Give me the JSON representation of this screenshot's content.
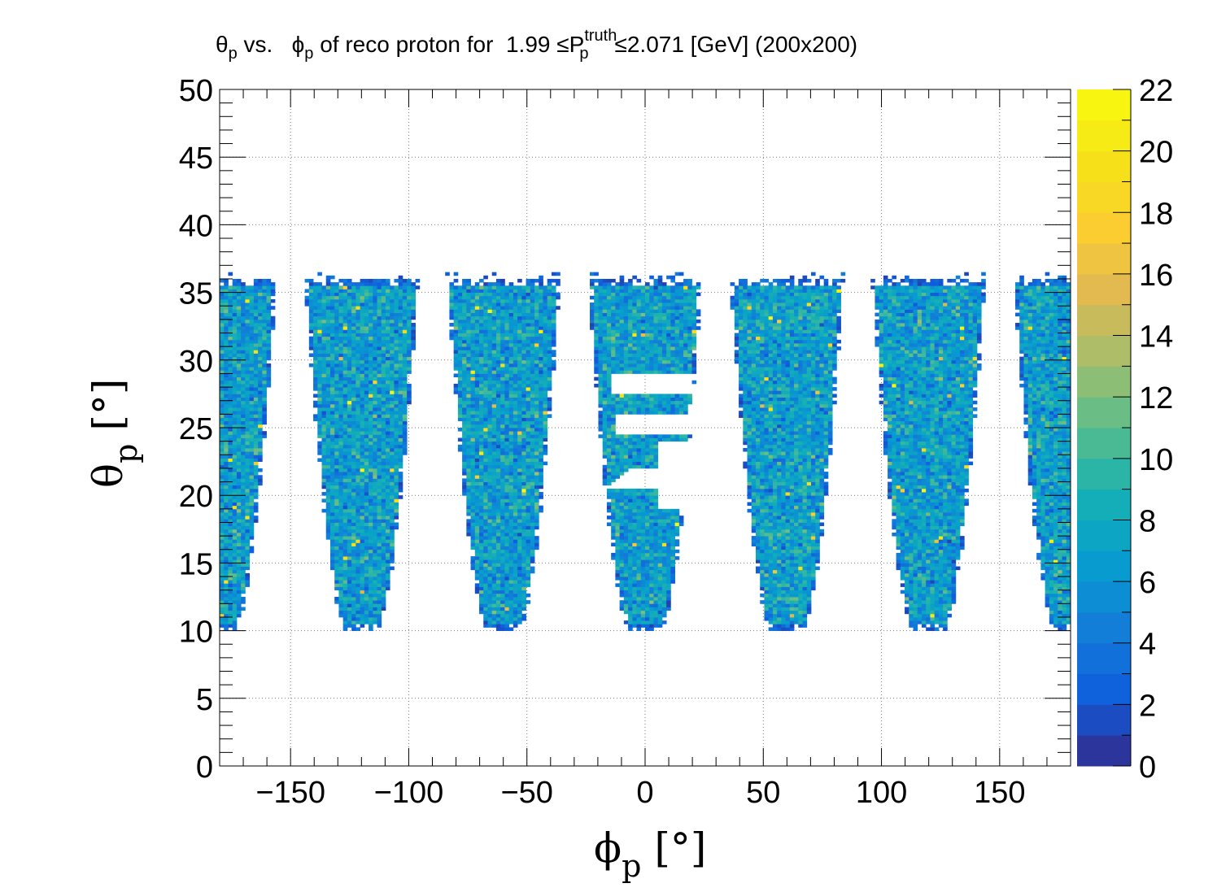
{
  "chart_data": {
    "type": "heatmap",
    "title": {
      "p1": "θ",
      "p1_sub": "p",
      "p2": " vs.   ",
      "p3": "ϕ",
      "p3_sub": "p",
      "p4": " of reco proton for  1.99 ≤P",
      "p4_sup": "truth",
      "p4_sub": "p",
      "p5": "≤2.071 [GeV] (200x200)"
    },
    "xlabel": {
      "main": "ϕ",
      "sub": "p",
      "unit": " [°]"
    },
    "ylabel": {
      "main": "θ",
      "sub": "p",
      "unit": " [°]"
    },
    "xlim": [
      -180,
      180
    ],
    "ylim": [
      0,
      50
    ],
    "zlim": [
      0,
      22
    ],
    "bins": [
      200,
      200
    ],
    "x_ticks": [
      -150,
      -100,
      -50,
      0,
      50,
      100,
      150
    ],
    "x_tick_labels": [
      "−150",
      "−100",
      "−50",
      "0",
      "50",
      "100",
      "150"
    ],
    "y_ticks": [
      0,
      5,
      10,
      15,
      20,
      25,
      30,
      35,
      40,
      45,
      50
    ],
    "y_tick_labels": [
      "0",
      "5",
      "10",
      "15",
      "20",
      "25",
      "30",
      "35",
      "40",
      "45",
      "50"
    ],
    "z_ticks": [
      0,
      2,
      4,
      6,
      8,
      10,
      12,
      14,
      16,
      18,
      20,
      22
    ],
    "z_tick_labels": [
      "0",
      "2",
      "4",
      "6",
      "8",
      "10",
      "12",
      "14",
      "16",
      "18",
      "20",
      "22"
    ],
    "grid": true,
    "colormap": "parula",
    "sectors": [
      {
        "phi_center": -180,
        "phi_half_width_top": 24,
        "phi_half_width_bottom": 6,
        "theta_min": 10,
        "theta_max": 36,
        "wrap": true
      },
      {
        "phi_center": -120,
        "phi_half_width_top": 24,
        "phi_half_width_bottom": 6,
        "theta_min": 10,
        "theta_max": 36
      },
      {
        "phi_center": -60,
        "phi_half_width_top": 24,
        "phi_half_width_bottom": 6,
        "theta_min": 10,
        "theta_max": 36
      },
      {
        "phi_center": 0,
        "phi_half_width_top": 24,
        "phi_half_width_bottom": 6,
        "theta_min": 10,
        "theta_max": 36,
        "gap_region": true
      },
      {
        "phi_center": 60,
        "phi_half_width_top": 24,
        "phi_half_width_bottom": 6,
        "theta_min": 10,
        "theta_max": 36
      },
      {
        "phi_center": 120,
        "phi_half_width_top": 24,
        "phi_half_width_bottom": 6,
        "theta_min": 10,
        "theta_max": 36
      }
    ],
    "typical_count": 7,
    "max_count": 22
  }
}
